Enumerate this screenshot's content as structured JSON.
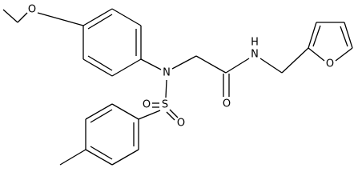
{
  "atoms": [
    {
      "label": "O"
    },
    {
      "label": "N"
    },
    {
      "label": "S"
    },
    {
      "label": "O"
    },
    {
      "label": "O"
    },
    {
      "label": "O"
    },
    {
      "label": "N"
    },
    {
      "label": "H"
    },
    {
      "label": "O"
    }
  ]
}
